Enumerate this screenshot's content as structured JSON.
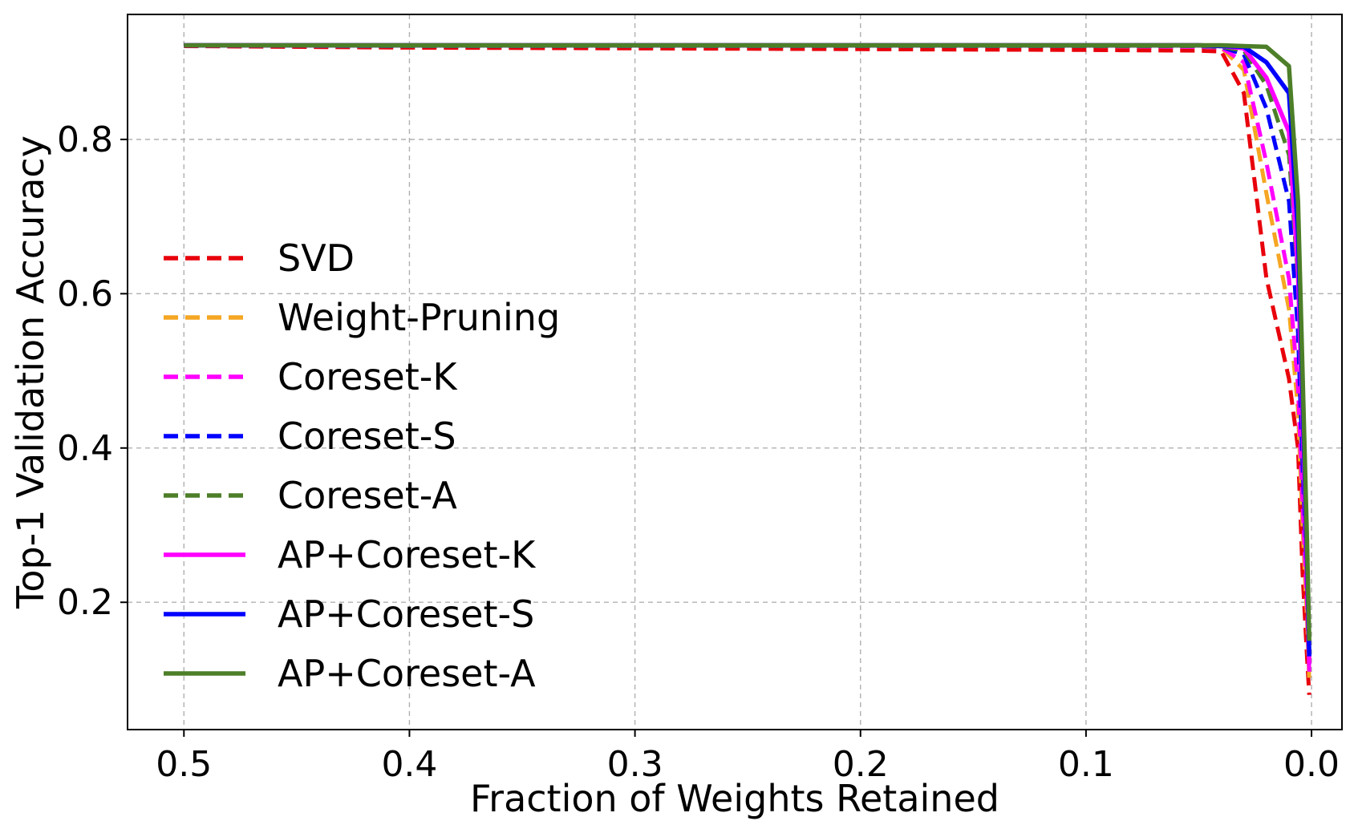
{
  "chart_data": {
    "type": "line",
    "title": "",
    "xlabel": "Fraction of Weights Retained",
    "ylabel": "Top-1 Validation Accuracy",
    "xlim": [
      0.525,
      -0.0135
    ],
    "ylim": [
      0.035,
      0.962
    ],
    "x_ticks": [
      0.5,
      0.4,
      0.3,
      0.2,
      0.1,
      0.0
    ],
    "x_tick_labels": [
      "0.5",
      "0.4",
      "0.3",
      "0.2",
      "0.1",
      "0.0"
    ],
    "y_ticks": [
      0.2,
      0.4,
      0.6,
      0.8
    ],
    "y_tick_labels": [
      "0.2",
      "0.4",
      "0.6",
      "0.8"
    ],
    "x_axis_inverted": true,
    "grid": true,
    "legend": {
      "placement": "center-left"
    },
    "series": [
      {
        "name": "SVD",
        "color": "#e8000b",
        "style": "dashed",
        "x": [
          0.5,
          0.4,
          0.3,
          0.2,
          0.1,
          0.05,
          0.04,
          0.03,
          0.02,
          0.01,
          0.006,
          0.004,
          0.002,
          0.001
        ],
        "y": [
          0.921,
          0.919,
          0.918,
          0.917,
          0.916,
          0.915,
          0.914,
          0.86,
          0.62,
          0.49,
          0.4,
          0.24,
          0.13,
          0.08
        ]
      },
      {
        "name": "Weight-Pruning",
        "color": "#f5a623",
        "style": "dashed",
        "x": [
          0.5,
          0.4,
          0.3,
          0.2,
          0.1,
          0.05,
          0.04,
          0.03,
          0.02,
          0.01,
          0.006,
          0.004,
          0.002,
          0.001
        ],
        "y": [
          0.922,
          0.921,
          0.921,
          0.921,
          0.921,
          0.92,
          0.919,
          0.89,
          0.73,
          0.58,
          0.45,
          0.3,
          0.18,
          0.1
        ]
      },
      {
        "name": "Coreset-K",
        "color": "#ff00ff",
        "style": "dashed",
        "x": [
          0.5,
          0.4,
          0.3,
          0.2,
          0.1,
          0.05,
          0.04,
          0.03,
          0.02,
          0.01,
          0.006,
          0.004,
          0.002,
          0.001
        ],
        "y": [
          0.922,
          0.921,
          0.921,
          0.921,
          0.921,
          0.92,
          0.919,
          0.9,
          0.77,
          0.62,
          0.48,
          0.33,
          0.2,
          0.11
        ]
      },
      {
        "name": "Coreset-S",
        "color": "#0000ff",
        "style": "dashed",
        "x": [
          0.5,
          0.4,
          0.3,
          0.2,
          0.1,
          0.05,
          0.04,
          0.03,
          0.02,
          0.01,
          0.006,
          0.004,
          0.002,
          0.001
        ],
        "y": [
          0.922,
          0.921,
          0.921,
          0.921,
          0.921,
          0.921,
          0.92,
          0.91,
          0.84,
          0.72,
          0.55,
          0.38,
          0.23,
          0.12
        ]
      },
      {
        "name": "Coreset-A",
        "color": "#4d7f29",
        "style": "dashed",
        "x": [
          0.5,
          0.4,
          0.3,
          0.2,
          0.1,
          0.05,
          0.04,
          0.03,
          0.02,
          0.01,
          0.006,
          0.004,
          0.002,
          0.001
        ],
        "y": [
          0.922,
          0.921,
          0.921,
          0.921,
          0.921,
          0.921,
          0.92,
          0.915,
          0.87,
          0.78,
          0.62,
          0.44,
          0.27,
          0.14
        ]
      },
      {
        "name": "AP+Coreset-K",
        "color": "#ff00ff",
        "style": "solid",
        "x": [
          0.5,
          0.4,
          0.3,
          0.2,
          0.1,
          0.05,
          0.04,
          0.03,
          0.02,
          0.01,
          0.006,
          0.004,
          0.002,
          0.001
        ],
        "y": [
          0.922,
          0.922,
          0.922,
          0.922,
          0.922,
          0.922,
          0.921,
          0.918,
          0.88,
          0.81,
          0.63,
          0.44,
          0.24,
          0.12
        ]
      },
      {
        "name": "AP+Coreset-S",
        "color": "#0000ff",
        "style": "solid",
        "x": [
          0.5,
          0.4,
          0.3,
          0.2,
          0.1,
          0.05,
          0.04,
          0.03,
          0.02,
          0.01,
          0.006,
          0.004,
          0.002,
          0.001
        ],
        "y": [
          0.922,
          0.922,
          0.922,
          0.922,
          0.922,
          0.922,
          0.921,
          0.92,
          0.9,
          0.86,
          0.68,
          0.47,
          0.26,
          0.13
        ]
      },
      {
        "name": "AP+Coreset-A",
        "color": "#4d7f29",
        "style": "solid",
        "x": [
          0.5,
          0.4,
          0.3,
          0.2,
          0.1,
          0.05,
          0.04,
          0.03,
          0.02,
          0.01,
          0.006,
          0.004,
          0.002,
          0.001
        ],
        "y": [
          0.922,
          0.922,
          0.922,
          0.922,
          0.922,
          0.922,
          0.922,
          0.921,
          0.92,
          0.895,
          0.72,
          0.5,
          0.28,
          0.15
        ]
      }
    ]
  }
}
